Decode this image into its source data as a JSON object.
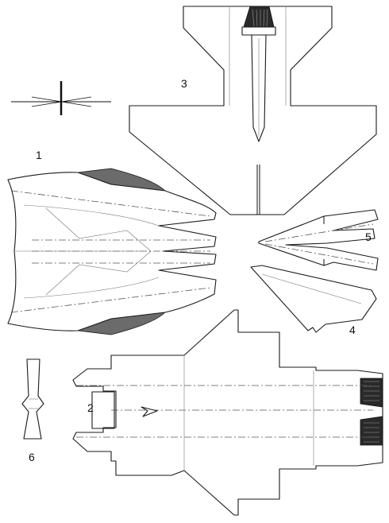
{
  "labels": {
    "part1": "1",
    "part2": "2",
    "part3": "3",
    "part4": "4",
    "part5": "5",
    "part6": "6"
  },
  "colors": {
    "line": "#1a1a1a",
    "fold_line": "#555555",
    "shade": "#6b6b6b",
    "nozzle": "#2a2a2a"
  },
  "icons": {
    "top_left_glyph": "axis-cross-icon"
  }
}
